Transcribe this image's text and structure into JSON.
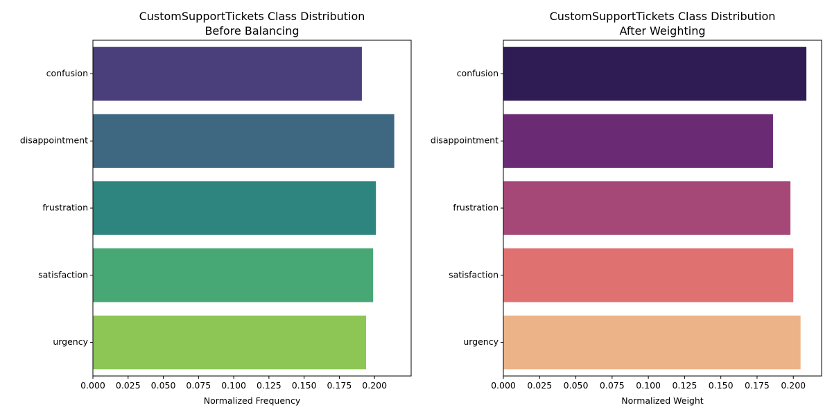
{
  "chart_data": [
    {
      "type": "bar",
      "orientation": "horizontal",
      "title": "CustomSupportTickets Class Distribution",
      "subtitle": "Before Balancing",
      "xlabel": "Normalized Frequency",
      "ylabel": "",
      "categories": [
        "confusion",
        "disappointment",
        "frustration",
        "satisfaction",
        "urgency"
      ],
      "values": [
        0.191,
        0.214,
        0.201,
        0.199,
        0.194
      ],
      "colors": [
        "#4a3f7a",
        "#3e6782",
        "#2e857f",
        "#47a876",
        "#8dc655"
      ],
      "xlim": [
        0,
        0.226
      ],
      "xticks": [
        "0.000",
        "0.025",
        "0.050",
        "0.075",
        "0.100",
        "0.125",
        "0.150",
        "0.175",
        "0.200"
      ],
      "grid": false,
      "legend": "none"
    },
    {
      "type": "bar",
      "orientation": "horizontal",
      "title": "CustomSupportTickets Class Distribution",
      "subtitle": "After Weighting",
      "xlabel": "Normalized Weight",
      "ylabel": "",
      "categories": [
        "confusion",
        "disappointment",
        "frustration",
        "satisfaction",
        "urgency"
      ],
      "values": [
        0.209,
        0.186,
        0.198,
        0.2,
        0.205
      ],
      "colors": [
        "#2f1c54",
        "#6a2b74",
        "#a54877",
        "#df7270",
        "#edb388"
      ],
      "xlim": [
        0,
        0.2195
      ],
      "xticks": [
        "0.000",
        "0.025",
        "0.050",
        "0.075",
        "0.100",
        "0.125",
        "0.150",
        "0.175",
        "0.200"
      ],
      "grid": false,
      "legend": "none"
    }
  ]
}
